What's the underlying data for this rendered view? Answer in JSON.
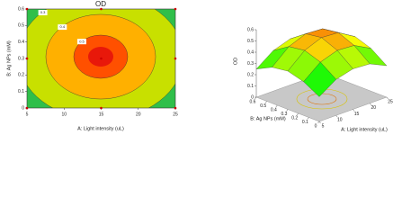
{
  "chart_data": [
    {
      "type": "contour",
      "title": "OD",
      "x_label": "A: Light intensity (uL)",
      "y_label": "B: Ag NPs (mM)",
      "xlim": [
        5,
        25
      ],
      "ylim": [
        0,
        0.6
      ],
      "xticks": [
        5,
        10,
        15,
        20,
        25
      ],
      "yticks": [
        0,
        0.1,
        0.2,
        0.3,
        0.4,
        0.5,
        0.6
      ],
      "levels": [
        0.3,
        0.4,
        0.5
      ],
      "x": [
        5,
        5,
        5,
        15,
        15,
        15,
        25,
        25,
        25
      ],
      "y": [
        0,
        0.3,
        0.6,
        0,
        0.3,
        0.6,
        0,
        0.3,
        0.6
      ],
      "color": "#cc0000"
    },
    {
      "type": "surface",
      "z_label": "OD",
      "x_label": "A: Light intensity (uL)",
      "y_label": "B: Ag NPs (mM)",
      "xlim": [
        5,
        25
      ],
      "ylim": [
        0,
        0.6
      ],
      "zlim": [
        0,
        0.6
      ],
      "xticks": [
        5,
        10,
        15,
        20,
        25
      ],
      "yticks": [
        0,
        0.1,
        0.2,
        0.3,
        0.4,
        0.5,
        0.6
      ],
      "zticks": [
        0,
        0.1,
        0.2,
        0.3,
        0.4,
        0.5,
        0.6
      ],
      "x": [
        5,
        10,
        15,
        20,
        25
      ],
      "y": [
        0,
        0.15,
        0.3,
        0.45,
        0.6
      ],
      "z": [
        [
          0.22,
          0.3,
          0.34,
          0.32,
          0.25
        ],
        [
          0.32,
          0.42,
          0.47,
          0.45,
          0.36
        ],
        [
          0.36,
          0.47,
          0.53,
          0.51,
          0.41
        ],
        [
          0.35,
          0.46,
          0.52,
          0.5,
          0.4
        ],
        [
          0.28,
          0.38,
          0.43,
          0.41,
          0.33
        ]
      ]
    }
  ]
}
